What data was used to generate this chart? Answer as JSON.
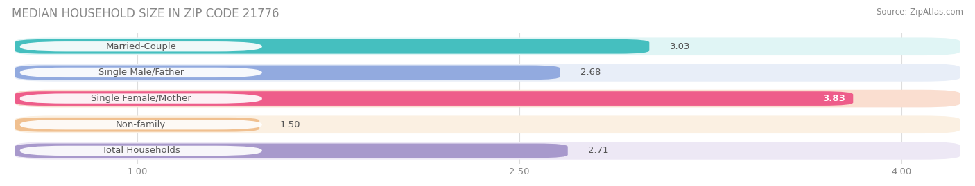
{
  "title": "MEDIAN HOUSEHOLD SIZE IN ZIP CODE 21776",
  "source": "Source: ZipAtlas.com",
  "categories": [
    "Married-Couple",
    "Single Male/Father",
    "Single Female/Mother",
    "Non-family",
    "Total Households"
  ],
  "values": [
    3.03,
    2.68,
    3.83,
    1.5,
    2.71
  ],
  "bar_colors": [
    "#45BFBF",
    "#92AADF",
    "#EE5D8A",
    "#F0C090",
    "#A899CC"
  ],
  "bar_bg_colors": [
    "#E0F5F5",
    "#E8EEF8",
    "#FADED0",
    "#FBF0E2",
    "#EDE8F5"
  ],
  "xmin": 0.5,
  "xmax": 4.25,
  "xticks": [
    1.0,
    2.5,
    4.0
  ],
  "xticklabels": [
    "1.00",
    "2.50",
    "4.00"
  ],
  "label_fontsize": 9.5,
  "value_fontsize": 9.5,
  "title_fontsize": 12,
  "background_color": "#FFFFFF",
  "label_color": "#555555",
  "grid_color": "#DDDDDD"
}
